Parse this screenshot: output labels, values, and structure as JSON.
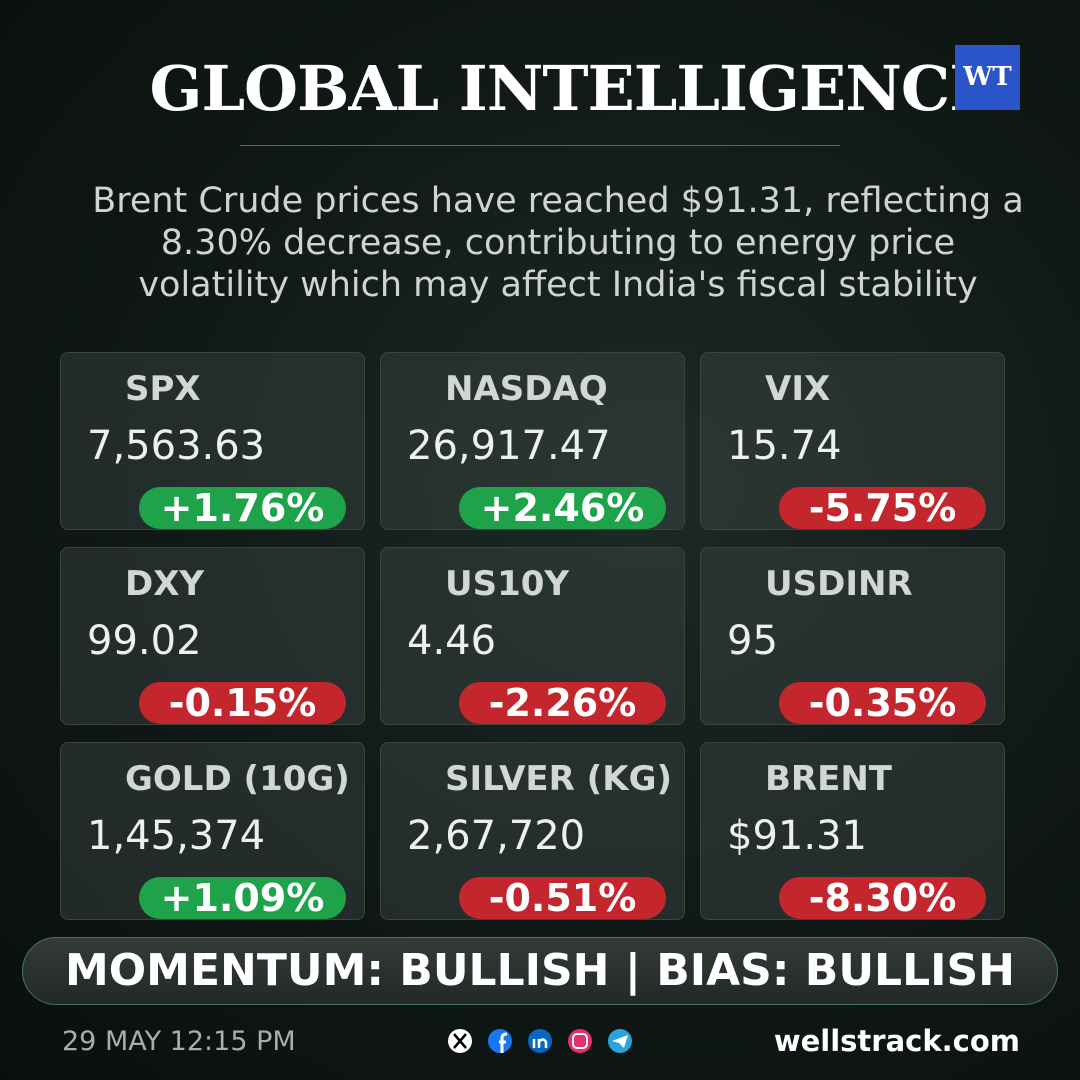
{
  "header": {
    "title": "GLOBAL INTELLIGENCE",
    "logo": "WT"
  },
  "summary": [
    "Brent Crude prices have reached $91.31, reflecting a",
    "8.30% decrease, contributing to energy price",
    "volatility which may affect India's fiscal stability"
  ],
  "cards": [
    {
      "name": "SPX",
      "value": "7,563.63",
      "change": "+1.76%",
      "color": "#1fa34a"
    },
    {
      "name": "NASDAQ",
      "value": "26,917.47",
      "change": "+2.46%",
      "color": "#1fa34a"
    },
    {
      "name": "VIX",
      "value": "15.74",
      "change": "-5.75%",
      "color": "#c4262e"
    },
    {
      "name": "DXY",
      "value": "99.02",
      "change": "-0.15%",
      "color": "#c4262e"
    },
    {
      "name": "US10Y",
      "value": "4.46",
      "change": "-2.26%",
      "color": "#c4262e"
    },
    {
      "name": "USDINR",
      "value": "95",
      "change": "-0.35%",
      "color": "#c4262e"
    },
    {
      "name": "GOLD (10G)",
      "value": "1,45,374",
      "change": "+1.09%",
      "color": "#1fa34a"
    },
    {
      "name": "SILVER (KG)",
      "value": "2,67,720",
      "change": "-0.51%",
      "color": "#c4262e"
    },
    {
      "name": "BRENT",
      "value": "$91.31",
      "change": "-8.30%",
      "color": "#c4262e"
    }
  ],
  "banner": "MOMENTUM: BULLISH | BIAS: BULLISH",
  "footer": {
    "date": "29 MAY 12:15 PM",
    "site": "wellstrack.com"
  }
}
